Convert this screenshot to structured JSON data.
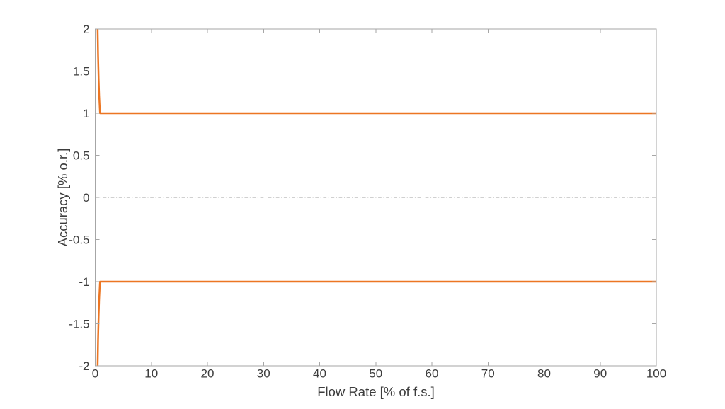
{
  "figure": {
    "background": "#ffffff"
  },
  "chart_data": {
    "type": "line",
    "title": "",
    "xlabel": "Flow Rate [% of f.s.]",
    "ylabel": "Accuracy [% o.r.]",
    "xlim": [
      0,
      100
    ],
    "ylim": [
      -2,
      2
    ],
    "x_ticks": [
      0,
      10,
      20,
      30,
      40,
      50,
      60,
      70,
      80,
      90,
      100
    ],
    "y_ticks": [
      -2,
      -1.5,
      -1,
      -0.5,
      0,
      0.5,
      1,
      1.5,
      2
    ],
    "grid": false,
    "box": true,
    "legend": false,
    "axis_color": "#a6a6a6",
    "tick_label_color": "#3d3d3d",
    "tick_font_size": 17,
    "series": [
      {
        "name": "upper-accuracy-limit",
        "color": "#EC7623",
        "width": 2.5,
        "style": "solid",
        "x": [
          0.43,
          0.5,
          0.6,
          0.7,
          0.85,
          1,
          2,
          10,
          50,
          100
        ],
        "y": [
          2,
          1.7,
          1.42,
          1.21,
          1,
          1,
          1,
          1,
          1,
          1
        ]
      },
      {
        "name": "lower-accuracy-limit",
        "color": "#EC7623",
        "width": 2.5,
        "style": "solid",
        "x": [
          0.43,
          0.5,
          0.6,
          0.7,
          0.85,
          1,
          2,
          10,
          50,
          100
        ],
        "y": [
          -2,
          -1.7,
          -1.42,
          -1.21,
          -1,
          -1,
          -1,
          -1,
          -1,
          -1
        ]
      },
      {
        "name": "zero-reference",
        "color": "#a0a0a0",
        "width": 1,
        "style": "dashdot",
        "x": [
          0,
          100
        ],
        "y": [
          0,
          0
        ]
      }
    ]
  }
}
